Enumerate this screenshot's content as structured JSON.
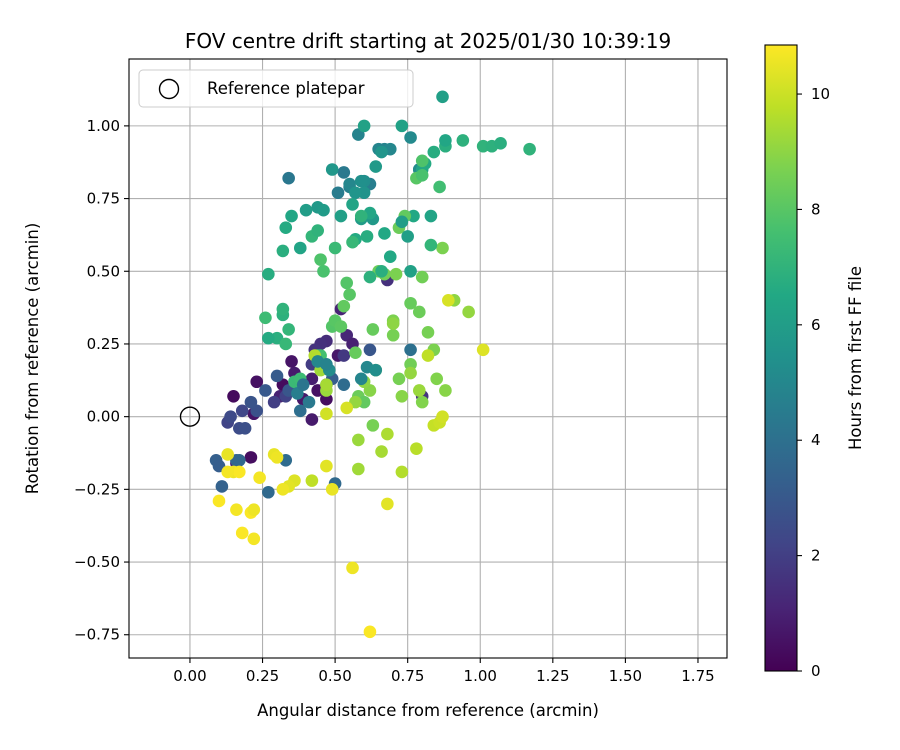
{
  "chart_data": {
    "type": "scatter",
    "title": "FOV centre drift starting at 2025/01/30 10:39:19",
    "xlabel": "Angular distance from reference (arcmin)",
    "ylabel": "Rotation from reference (arcmin)",
    "xlim": [
      -0.21,
      1.85
    ],
    "ylim": [
      -0.83,
      1.23
    ],
    "x_ticks": [
      0.0,
      0.25,
      0.5,
      0.75,
      1.0,
      1.25,
      1.5,
      1.75
    ],
    "x_tick_labels": [
      "0.00",
      "0.25",
      "0.50",
      "0.75",
      "1.00",
      "1.25",
      "1.50",
      "1.75"
    ],
    "y_ticks": [
      -0.75,
      -0.5,
      -0.25,
      0.0,
      0.25,
      0.5,
      0.75,
      1.0
    ],
    "y_tick_labels": [
      "−0.75",
      "−0.50",
      "−0.25",
      "0.00",
      "0.25",
      "0.50",
      "0.75",
      "1.00"
    ],
    "grid": true,
    "legend": {
      "placement": "top-left",
      "entries": [
        "Reference platepar"
      ]
    },
    "reference_point": {
      "x": 0.0,
      "y": 0.0
    },
    "colorbar": {
      "label": "Hours from first FF file",
      "colormap": "viridis",
      "range": [
        0,
        10.85
      ],
      "ticks": [
        0,
        2,
        4,
        6,
        8,
        10
      ],
      "tick_labels": [
        "0",
        "2",
        "4",
        "6",
        "8",
        "10"
      ]
    },
    "points": [
      [
        0.15,
        0.07,
        0.3
      ],
      [
        0.23,
        0.12,
        0.5
      ],
      [
        0.21,
        -0.14,
        0.4
      ],
      [
        0.35,
        0.19,
        0.6
      ],
      [
        0.36,
        0.15,
        0.8
      ],
      [
        0.32,
        0.11,
        0.3
      ],
      [
        0.39,
        0.06,
        0.7
      ],
      [
        0.42,
        0.13,
        0.9
      ],
      [
        0.44,
        0.09,
        0.5
      ],
      [
        0.22,
        0.01,
        0.6
      ],
      [
        0.31,
        0.07,
        1.0
      ],
      [
        0.47,
        0.06,
        0.4
      ],
      [
        0.51,
        0.21,
        0.7
      ],
      [
        0.52,
        0.37,
        1.1
      ],
      [
        0.54,
        0.28,
        1.2
      ],
      [
        0.56,
        0.25,
        1.0
      ],
      [
        0.42,
        -0.01,
        0.8
      ],
      [
        0.16,
        -0.16,
        1.2
      ],
      [
        0.47,
        0.26,
        1.4
      ],
      [
        0.45,
        0.25,
        1.5
      ],
      [
        0.68,
        0.47,
        1.5
      ],
      [
        0.8,
        0.07,
        1.6
      ],
      [
        0.43,
        0.23,
        1.6
      ],
      [
        0.53,
        0.21,
        1.8
      ],
      [
        0.42,
        0.18,
        1.9
      ],
      [
        0.29,
        0.05,
        2.0
      ],
      [
        0.33,
        0.07,
        2.1
      ],
      [
        0.13,
        -0.02,
        2.2
      ],
      [
        0.18,
        0.02,
        2.3
      ],
      [
        0.14,
        0.0,
        2.4
      ],
      [
        0.17,
        -0.04,
        2.5
      ],
      [
        0.19,
        -0.04,
        2.6
      ],
      [
        0.23,
        0.02,
        2.7
      ],
      [
        0.21,
        0.05,
        2.8
      ],
      [
        0.62,
        0.23,
        2.9
      ],
      [
        0.38,
        0.11,
        2.6
      ],
      [
        0.34,
        0.09,
        2.9
      ],
      [
        0.26,
        0.09,
        3.0
      ],
      [
        0.3,
        0.14,
        3.1
      ],
      [
        0.49,
        0.13,
        3.2
      ],
      [
        0.09,
        -0.15,
        3.3
      ],
      [
        0.1,
        -0.17,
        3.2
      ],
      [
        0.11,
        -0.24,
        3.4
      ],
      [
        0.16,
        -0.15,
        3.5
      ],
      [
        0.17,
        -0.15,
        3.6
      ],
      [
        0.27,
        -0.26,
        3.7
      ],
      [
        0.33,
        -0.15,
        3.8
      ],
      [
        0.47,
        0.11,
        3.6
      ],
      [
        0.5,
        -0.23,
        3.7
      ],
      [
        0.53,
        0.11,
        3.8
      ],
      [
        0.38,
        0.02,
        3.9
      ],
      [
        0.76,
        0.23,
        4.0
      ],
      [
        0.79,
        0.85,
        4.1
      ],
      [
        0.34,
        0.82,
        4.3
      ],
      [
        0.53,
        0.84,
        4.4
      ],
      [
        0.51,
        0.77,
        4.5
      ],
      [
        0.62,
        0.8,
        4.6
      ],
      [
        0.55,
        0.79,
        4.7
      ],
      [
        0.58,
        0.97,
        4.8
      ],
      [
        0.65,
        0.92,
        4.9
      ],
      [
        0.67,
        0.92,
        4.8
      ],
      [
        0.69,
        0.92,
        5.0
      ],
      [
        0.76,
        0.96,
        5.1
      ],
      [
        0.79,
        0.85,
        5.2
      ],
      [
        0.6,
        0.81,
        5.3
      ],
      [
        0.55,
        0.8,
        5.0
      ],
      [
        0.59,
        0.81,
        5.4
      ],
      [
        0.6,
        0.77,
        5.5
      ],
      [
        0.57,
        0.77,
        5.6
      ],
      [
        0.49,
        0.85,
        5.7
      ],
      [
        0.44,
        0.72,
        5.8
      ],
      [
        0.46,
        0.71,
        5.9
      ],
      [
        0.4,
        0.71,
        6.0
      ],
      [
        0.52,
        0.69,
        6.1
      ],
      [
        0.59,
        0.68,
        5.9
      ],
      [
        0.63,
        0.68,
        5.8
      ],
      [
        0.73,
        1.0,
        6.2
      ],
      [
        0.56,
        0.73,
        6.3
      ],
      [
        0.62,
        0.7,
        6.4
      ],
      [
        0.77,
        0.69,
        6.5
      ],
      [
        0.8,
        0.85,
        6.3
      ],
      [
        0.81,
        0.87,
        6.6
      ],
      [
        0.84,
        0.91,
        6.7
      ],
      [
        0.88,
        0.93,
        6.8
      ],
      [
        0.94,
        0.95,
        6.9
      ],
      [
        1.01,
        0.93,
        7.0
      ],
      [
        1.04,
        0.93,
        6.9
      ],
      [
        1.07,
        0.94,
        6.8
      ],
      [
        1.17,
        0.92,
        7.0
      ],
      [
        0.87,
        1.1,
        6.1
      ],
      [
        0.6,
        1.0,
        6.2
      ],
      [
        0.67,
        0.63,
        6.5
      ],
      [
        0.57,
        0.61,
        6.6
      ],
      [
        0.56,
        0.6,
        7.2
      ],
      [
        0.5,
        0.58,
        7.3
      ],
      [
        0.42,
        0.62,
        7.1
      ],
      [
        0.44,
        0.64,
        7.0
      ],
      [
        0.32,
        0.57,
        6.8
      ],
      [
        0.33,
        0.65,
        6.6
      ],
      [
        0.27,
        0.49,
        6.7
      ],
      [
        0.3,
        0.27,
        6.8
      ],
      [
        0.27,
        0.27,
        6.6
      ],
      [
        0.32,
        0.35,
        6.9
      ],
      [
        0.32,
        0.37,
        7.0
      ],
      [
        0.34,
        0.3,
        7.1
      ],
      [
        0.33,
        0.25,
        7.2
      ],
      [
        0.36,
        0.12,
        7.3
      ],
      [
        0.38,
        0.13,
        7.4
      ],
      [
        0.44,
        0.21,
        7.5
      ],
      [
        0.45,
        0.21,
        7.6
      ],
      [
        0.46,
        0.5,
        7.7
      ],
      [
        0.45,
        0.54,
        7.8
      ],
      [
        0.49,
        0.31,
        7.9
      ],
      [
        0.5,
        0.33,
        8.0
      ],
      [
        0.52,
        0.31,
        8.1
      ],
      [
        0.54,
        0.46,
        7.9
      ],
      [
        0.55,
        0.42,
        8.0
      ],
      [
        0.53,
        0.38,
        8.2
      ],
      [
        0.57,
        0.22,
        8.3
      ],
      [
        0.58,
        0.07,
        8.4
      ],
      [
        0.6,
        0.05,
        8.2
      ],
      [
        0.63,
        0.3,
        8.3
      ],
      [
        0.65,
        0.5,
        8.4
      ],
      [
        0.67,
        0.49,
        8.5
      ],
      [
        0.7,
        0.28,
        8.6
      ],
      [
        0.71,
        0.49,
        8.7
      ],
      [
        0.72,
        0.65,
        8.4
      ],
      [
        0.74,
        0.69,
        8.2
      ],
      [
        0.76,
        0.39,
        8.3
      ],
      [
        0.79,
        0.36,
        8.4
      ],
      [
        0.8,
        0.48,
        8.5
      ],
      [
        0.82,
        0.29,
        8.6
      ],
      [
        0.84,
        0.23,
        8.7
      ],
      [
        0.85,
        0.13,
        8.8
      ],
      [
        0.88,
        0.09,
        8.9
      ],
      [
        0.91,
        0.4,
        9.0
      ],
      [
        0.96,
        0.36,
        9.1
      ],
      [
        0.87,
        0.58,
        8.7
      ],
      [
        0.8,
        0.05,
        8.8
      ],
      [
        0.76,
        0.18,
        8.5
      ],
      [
        0.72,
        0.13,
        8.6
      ],
      [
        0.7,
        0.33,
        8.7
      ],
      [
        0.64,
        0.16,
        8.8
      ],
      [
        0.62,
        0.09,
        8.9
      ],
      [
        0.6,
        0.12,
        9.0
      ],
      [
        0.57,
        0.05,
        9.1
      ],
      [
        0.58,
        -0.08,
        9.2
      ],
      [
        0.58,
        -0.18,
        9.3
      ],
      [
        0.63,
        -0.03,
        8.6
      ],
      [
        0.66,
        -0.12,
        9.4
      ],
      [
        0.68,
        -0.06,
        9.5
      ],
      [
        0.73,
        -0.19,
        9.6
      ],
      [
        0.78,
        -0.11,
        9.7
      ],
      [
        0.82,
        0.21,
        9.8
      ],
      [
        0.84,
        -0.03,
        9.9
      ],
      [
        0.86,
        -0.02,
        10.0
      ],
      [
        0.87,
        0.0,
        10.1
      ],
      [
        0.89,
        0.4,
        10.2
      ],
      [
        1.01,
        0.23,
        10.3
      ],
      [
        0.68,
        -0.3,
        10.4
      ],
      [
        0.47,
        0.09,
        9.2
      ],
      [
        0.47,
        0.11,
        9.4
      ],
      [
        0.45,
        0.16,
        9.3
      ],
      [
        0.43,
        0.21,
        9.6
      ],
      [
        0.42,
        -0.22,
        9.8
      ],
      [
        0.47,
        0.01,
        10.1
      ],
      [
        0.54,
        0.03,
        10.2
      ],
      [
        0.47,
        -0.17,
        10.4
      ],
      [
        0.49,
        -0.25,
        10.5
      ],
      [
        0.36,
        -0.22,
        10.3
      ],
      [
        0.34,
        -0.24,
        10.4
      ],
      [
        0.32,
        -0.25,
        10.6
      ],
      [
        0.29,
        -0.13,
        10.5
      ],
      [
        0.3,
        -0.14,
        10.6
      ],
      [
        0.24,
        -0.21,
        10.7
      ],
      [
        0.13,
        -0.13,
        10.5
      ],
      [
        0.15,
        -0.19,
        10.6
      ],
      [
        0.17,
        -0.19,
        10.8
      ],
      [
        0.13,
        -0.19,
        10.7
      ],
      [
        0.1,
        -0.29,
        10.8
      ],
      [
        0.16,
        -0.32,
        10.7
      ],
      [
        0.21,
        -0.33,
        10.8
      ],
      [
        0.22,
        -0.32,
        10.6
      ],
      [
        0.18,
        -0.4,
        10.8
      ],
      [
        0.22,
        -0.42,
        10.7
      ],
      [
        0.56,
        -0.52,
        10.6
      ],
      [
        0.62,
        -0.74,
        10.8
      ],
      [
        0.41,
        0.05,
        4.4
      ],
      [
        0.37,
        0.08,
        4.6
      ],
      [
        0.39,
        0.11,
        4.2
      ],
      [
        0.48,
        0.16,
        5.2
      ],
      [
        0.44,
        0.19,
        5.0
      ],
      [
        0.47,
        0.18,
        4.8
      ],
      [
        0.59,
        0.13,
        4.9
      ],
      [
        0.61,
        0.17,
        5.0
      ],
      [
        0.64,
        0.16,
        5.3
      ],
      [
        0.7,
        0.32,
        9.0
      ],
      [
        0.73,
        0.07,
        8.9
      ],
      [
        0.76,
        0.15,
        9.1
      ],
      [
        0.79,
        0.09,
        9.2
      ],
      [
        0.78,
        0.82,
        8.0
      ],
      [
        0.8,
        0.83,
        7.7
      ],
      [
        0.8,
        0.88,
        7.8
      ],
      [
        0.86,
        0.79,
        7.5
      ],
      [
        0.83,
        0.59,
        7.1
      ],
      [
        0.88,
        0.95,
        6.4
      ],
      [
        0.83,
        0.69,
        6.3
      ],
      [
        0.73,
        0.67,
        6.0
      ],
      [
        0.75,
        0.62,
        6.1
      ],
      [
        0.76,
        0.5,
        6.2
      ],
      [
        0.69,
        0.55,
        6.5
      ],
      [
        0.66,
        0.5,
        6.8
      ],
      [
        0.62,
        0.48,
        6.9
      ],
      [
        0.61,
        0.62,
        6.7
      ],
      [
        0.59,
        0.69,
        7.0
      ],
      [
        0.64,
        0.86,
        5.8
      ],
      [
        0.66,
        0.91,
        5.6
      ],
      [
        0.38,
        0.58,
        6.3
      ],
      [
        0.35,
        0.69,
        6.4
      ],
      [
        0.26,
        0.34,
        7.4
      ]
    ]
  }
}
